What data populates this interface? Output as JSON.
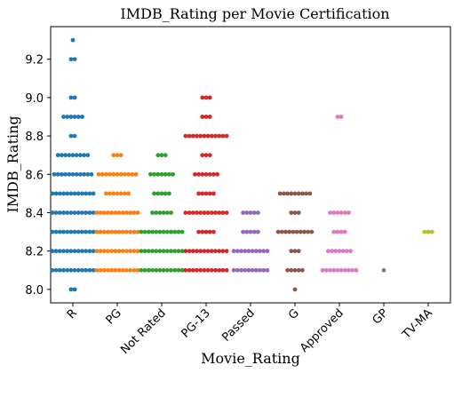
{
  "chart_data": {
    "type": "scatter",
    "subtype": "swarm",
    "title": "IMDB_Rating per Movie Certification",
    "xlabel": "Movie_Rating",
    "ylabel": "IMDB_Rating",
    "ylim": [
      7.93,
      9.37
    ],
    "yticks": [
      "8.0",
      "8.2",
      "8.4",
      "8.6",
      "8.8",
      "9.0",
      "9.2"
    ],
    "categories": [
      "R",
      "PG",
      "Not Rated",
      "PG-13",
      "Passed",
      "G",
      "Approved",
      "GP",
      "TV-MA"
    ],
    "grid": false,
    "legend": "none",
    "series": [
      {
        "category": "R",
        "color": "#1f77b4",
        "points": [
          {
            "y": 8.0,
            "count": 2
          },
          {
            "y": 8.1,
            "count": 12
          },
          {
            "y": 8.2,
            "count": 12
          },
          {
            "y": 8.3,
            "count": 12
          },
          {
            "y": 8.4,
            "count": 12
          },
          {
            "y": 8.5,
            "count": 12
          },
          {
            "y": 8.6,
            "count": 11
          },
          {
            "y": 8.7,
            "count": 9
          },
          {
            "y": 8.8,
            "count": 2
          },
          {
            "y": 8.9,
            "count": 6
          },
          {
            "y": 9.0,
            "count": 2
          },
          {
            "y": 9.2,
            "count": 2
          },
          {
            "y": 9.3,
            "count": 1
          }
        ]
      },
      {
        "category": "PG",
        "color": "#ff7f0e",
        "points": [
          {
            "y": 8.1,
            "count": 12
          },
          {
            "y": 8.2,
            "count": 12
          },
          {
            "y": 8.3,
            "count": 12
          },
          {
            "y": 8.4,
            "count": 12
          },
          {
            "y": 8.5,
            "count": 7
          },
          {
            "y": 8.6,
            "count": 11
          },
          {
            "y": 8.7,
            "count": 3
          }
        ]
      },
      {
        "category": "Not Rated",
        "color": "#2ca02c",
        "points": [
          {
            "y": 8.1,
            "count": 12
          },
          {
            "y": 8.2,
            "count": 12
          },
          {
            "y": 8.3,
            "count": 12
          },
          {
            "y": 8.4,
            "count": 6
          },
          {
            "y": 8.5,
            "count": 5
          },
          {
            "y": 8.6,
            "count": 7
          },
          {
            "y": 8.7,
            "count": 3
          }
        ]
      },
      {
        "category": "PG-13",
        "color": "#d62728",
        "points": [
          {
            "y": 8.1,
            "count": 12
          },
          {
            "y": 8.2,
            "count": 12
          },
          {
            "y": 8.3,
            "count": 5
          },
          {
            "y": 8.4,
            "count": 12
          },
          {
            "y": 8.5,
            "count": 5
          },
          {
            "y": 8.6,
            "count": 7
          },
          {
            "y": 8.7,
            "count": 3
          },
          {
            "y": 8.8,
            "count": 12
          },
          {
            "y": 8.9,
            "count": 3
          },
          {
            "y": 9.0,
            "count": 3
          }
        ]
      },
      {
        "category": "Passed",
        "color": "#9467bd",
        "points": [
          {
            "y": 8.1,
            "count": 10
          },
          {
            "y": 8.2,
            "count": 10
          },
          {
            "y": 8.3,
            "count": 5
          },
          {
            "y": 8.4,
            "count": 5
          }
        ]
      },
      {
        "category": "G",
        "color": "#8c564b",
        "points": [
          {
            "y": 8.0,
            "count": 1
          },
          {
            "y": 8.1,
            "count": 5
          },
          {
            "y": 8.2,
            "count": 3
          },
          {
            "y": 8.3,
            "count": 10
          },
          {
            "y": 8.4,
            "count": 3
          },
          {
            "y": 8.5,
            "count": 9
          }
        ]
      },
      {
        "category": "Approved",
        "color": "#e377c2",
        "points": [
          {
            "y": 8.1,
            "count": 10
          },
          {
            "y": 8.2,
            "count": 7
          },
          {
            "y": 8.3,
            "count": 4
          },
          {
            "y": 8.4,
            "count": 6
          },
          {
            "y": 8.9,
            "count": 2
          }
        ]
      },
      {
        "category": "GP",
        "color": "#7f7f7f",
        "points": [
          {
            "y": 8.1,
            "count": 1
          }
        ]
      },
      {
        "category": "TV-MA",
        "color": "#bcbd22",
        "points": [
          {
            "y": 8.3,
            "count": 3
          }
        ]
      }
    ]
  }
}
